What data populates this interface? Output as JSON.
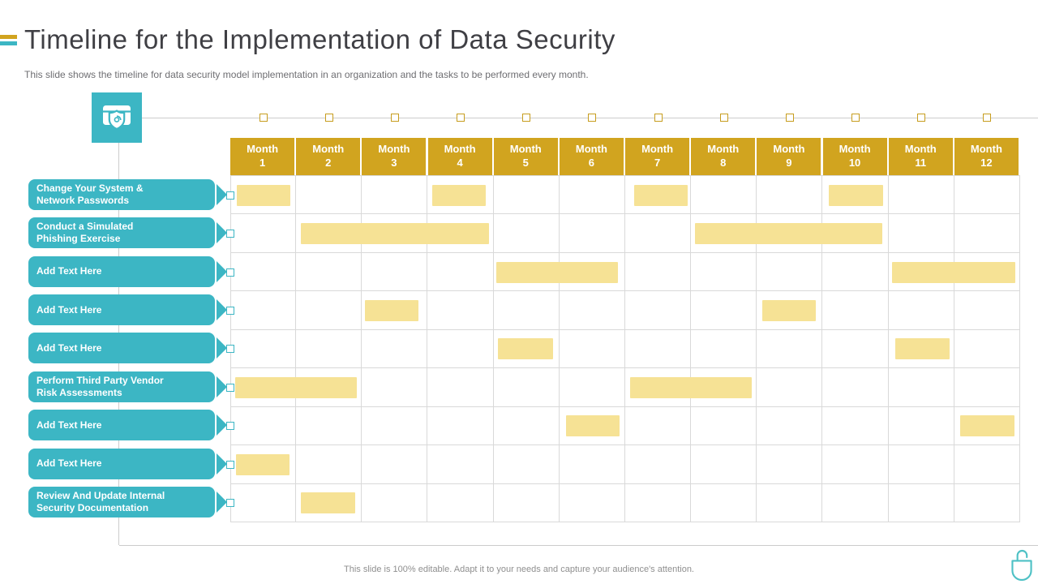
{
  "slide": {
    "title": "Timeline for the Implementation of Data Security",
    "subtitle": "This slide shows the timeline for data security model implementation in an organization and the tasks to be performed every month.",
    "footer": "This slide is 100% editable. Adapt it to your needs and capture your audience's attention."
  },
  "icons": {
    "top_left": "data-security-shield-fingerprint-icon",
    "bottom_right": "open-padlock-icon",
    "timeline_node": "hollow-square-marker",
    "row_node": "hollow-square-marker"
  },
  "colors": {
    "gold": "#d1a41f",
    "gold_border": "#c79d1e",
    "bar_yellow": "#f6e295",
    "teal": "#3cb6c4",
    "grid_line": "#d9d9d9",
    "connector_line": "#cccccc",
    "title_text": "#3f3f44",
    "subtitle_text": "#6e6e72",
    "footer_text": "#8f8f8f"
  },
  "chart_data": {
    "type": "gantt",
    "title": "Timeline for the Implementation of Data Security",
    "x_axis_unit": "month",
    "x_axis_range_months": [
      0,
      12
    ],
    "grid": true,
    "x_categories": [
      "Month 1",
      "Month 2",
      "Month 3",
      "Month 4",
      "Month 5",
      "Month 6",
      "Month 7",
      "Month 8",
      "Month 9",
      "Month 10",
      "Month 11",
      "Month 12"
    ],
    "tasks": [
      {
        "label": "Change Your System &\nNetwork Passwords",
        "active_months": [
          1,
          4,
          7,
          10
        ],
        "bars": [
          {
            "start": 0.1,
            "end": 0.91
          },
          {
            "start": 3.07,
            "end": 3.88
          },
          {
            "start": 6.13,
            "end": 6.95
          },
          {
            "start": 9.09,
            "end": 9.92
          }
        ]
      },
      {
        "label": "Conduct a Simulated\nPhishing Exercise",
        "active_months": [
          2,
          3,
          4,
          8,
          9,
          10
        ],
        "bars": [
          {
            "start": 1.07,
            "end": 3.93
          },
          {
            "start": 7.06,
            "end": 9.9
          }
        ]
      },
      {
        "label": "Add Text Here",
        "active_months": [
          5,
          6,
          11,
          12
        ],
        "bars": [
          {
            "start": 4.04,
            "end": 5.89
          },
          {
            "start": 10.05,
            "end": 11.93
          }
        ]
      },
      {
        "label": "Add Text Here",
        "active_months": [
          3,
          9
        ],
        "bars": [
          {
            "start": 2.05,
            "end": 2.86
          },
          {
            "start": 8.08,
            "end": 8.9
          }
        ]
      },
      {
        "label": "Add Text Here",
        "active_months": [
          5,
          11
        ],
        "bars": [
          {
            "start": 4.07,
            "end": 4.9
          },
          {
            "start": 10.1,
            "end": 10.93
          }
        ]
      },
      {
        "label": "Perform Third Party Vendor\nRisk Assessments",
        "active_months": [
          1,
          2,
          7,
          8
        ],
        "bars": [
          {
            "start": 0.07,
            "end": 1.92
          },
          {
            "start": 6.07,
            "end": 7.92
          }
        ]
      },
      {
        "label": "Add Text Here",
        "active_months": [
          6,
          12
        ],
        "bars": [
          {
            "start": 5.1,
            "end": 5.91
          },
          {
            "start": 11.09,
            "end": 11.91
          }
        ]
      },
      {
        "label": "Add Text Here",
        "active_months": [
          1
        ],
        "bars": [
          {
            "start": 0.09,
            "end": 0.9
          }
        ]
      },
      {
        "label": "Review And Update Internal\nSecurity Documentation",
        "active_months": [
          2
        ],
        "bars": [
          {
            "start": 1.07,
            "end": 1.9
          }
        ]
      }
    ]
  }
}
